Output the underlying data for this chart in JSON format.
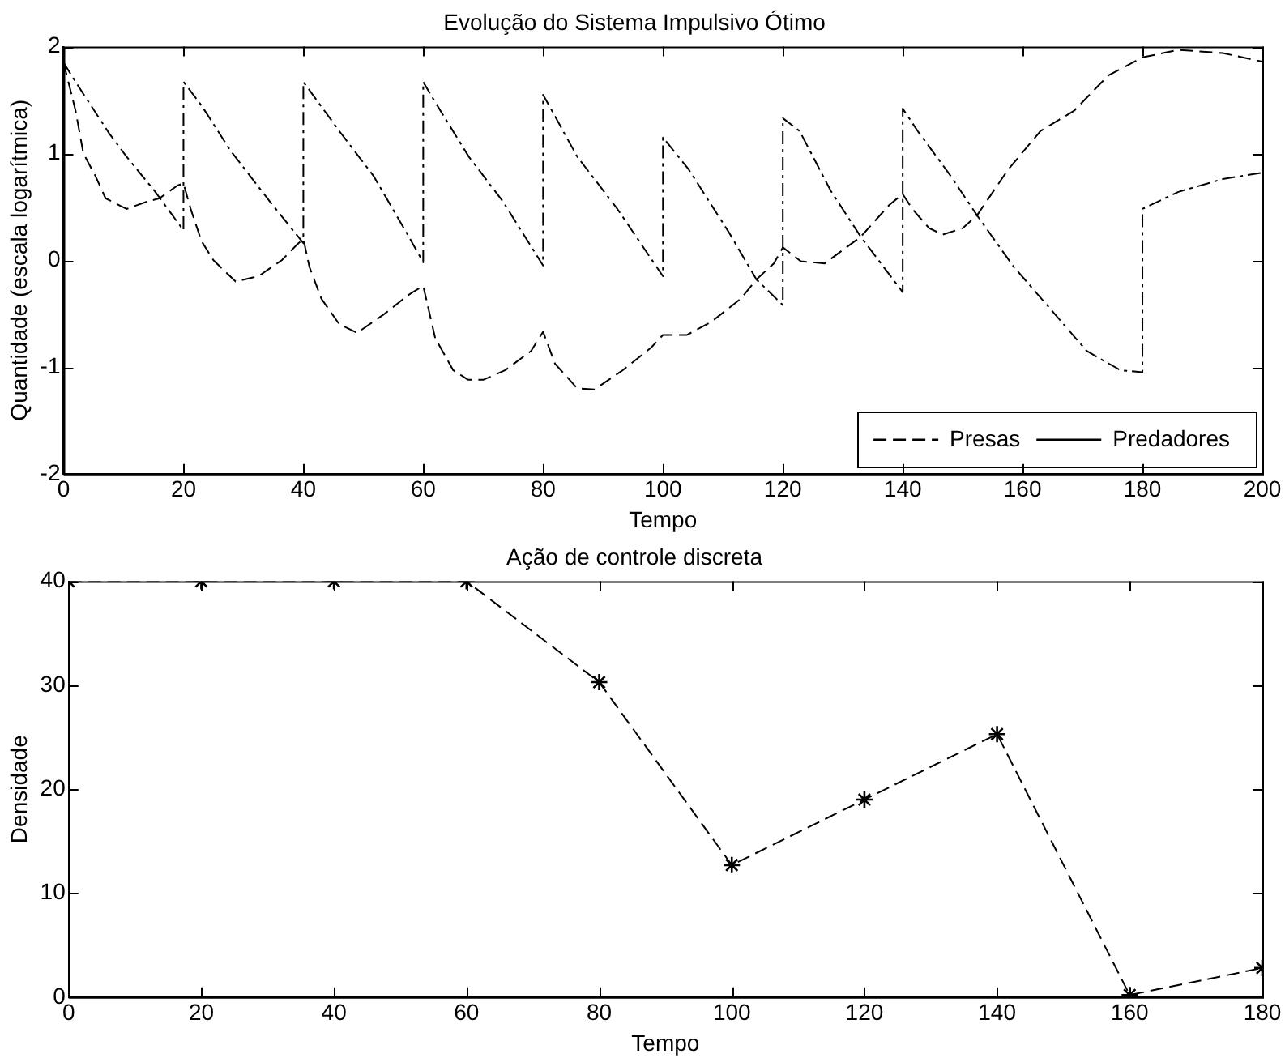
{
  "chart_data": [
    {
      "type": "line",
      "title": "Evolução do Sistema Impulsivo Ótimo",
      "xlabel": "Tempo",
      "ylabel": "Quantidade (escala logarítmica)",
      "xlim": [
        0,
        200
      ],
      "xticks": [
        0,
        20,
        40,
        60,
        80,
        100,
        120,
        140,
        160,
        180,
        200
      ],
      "ylim": [
        -2,
        2
      ],
      "yticks": [
        -2,
        -1,
        0,
        1,
        2
      ],
      "grid": false,
      "legend": "bottom right",
      "marker": "none",
      "series": [
        {
          "name": "Presas",
          "color": "#000000",
          "line_style": "dashed",
          "x": [
            0,
            2,
            3.3,
            5.3,
            7,
            10.5,
            14,
            16,
            19,
            20,
            21.2,
            23,
            25,
            28.7,
            32.5,
            36.4,
            39,
            40,
            41,
            43,
            46,
            49,
            53.6,
            57.4,
            60,
            62,
            65,
            67.5,
            70,
            73.7,
            78,
            80,
            82,
            85.7,
            88.6,
            93.3,
            98,
            100,
            104,
            108,
            113,
            115.6,
            118.5,
            120,
            123,
            127,
            133,
            137.8,
            140,
            141.6,
            144.4,
            146.7,
            150,
            152.4,
            157.6,
            163,
            168.6,
            174.3,
            180,
            186,
            193.4,
            200
          ],
          "values": [
            1.85,
            1.4,
            1.0,
            0.79,
            0.58,
            0.48,
            0.55,
            0.58,
            0.7,
            0.72,
            0.48,
            0.18,
            0,
            -0.2,
            -0.15,
            0,
            0.15,
            0.2,
            -0.06,
            -0.36,
            -0.6,
            -0.68,
            -0.5,
            -0.33,
            -0.24,
            -0.73,
            -1.03,
            -1.12,
            -1.12,
            -1.03,
            -0.85,
            -0.67,
            -0.97,
            -1.2,
            -1.21,
            -1.03,
            -0.82,
            -0.7,
            -0.7,
            -0.58,
            -0.36,
            -0.18,
            -0.03,
            0.12,
            -0.01,
            -0.03,
            0.22,
            0.52,
            0.62,
            0.48,
            0.3,
            0.24,
            0.3,
            0.42,
            0.85,
            1.21,
            1.4,
            1.73,
            1.9,
            1.97,
            1.94,
            1.86
          ]
        },
        {
          "name": "Predadores",
          "color": "#000000",
          "line_style": "dashdot",
          "x": [
            0,
            2.8,
            7.7,
            10.5,
            15.3,
            20,
            20,
            23,
            27.8,
            34.4,
            40,
            40,
            46,
            51.7,
            57.4,
            60,
            60,
            62,
            67.6,
            73.3,
            80,
            80,
            85.7,
            92.4,
            100,
            100,
            104.3,
            110.9,
            115.6,
            120,
            120,
            122.8,
            128,
            133,
            140,
            140,
            142.5,
            148,
            152.4,
            158.5,
            165,
            170.7,
            176.3,
            180,
            180,
            186,
            193.4,
            200
          ],
          "values": [
            1.85,
            1.6,
            1.18,
            0.97,
            0.64,
            0.28,
            1.67,
            1.45,
            1.03,
            0.55,
            0.16,
            1.67,
            1.21,
            0.79,
            0.24,
            -0.02,
            1.67,
            1.48,
            0.97,
            0.55,
            -0.05,
            1.55,
            0.97,
            0.48,
            -0.15,
            1.15,
            0.85,
            0.27,
            -0.18,
            -0.42,
            1.33,
            1.21,
            0.65,
            0.22,
            -0.3,
            1.42,
            1.21,
            0.79,
            0.42,
            -0.06,
            -0.48,
            -0.85,
            -1.03,
            -1.05,
            0.48,
            0.64,
            0.76,
            0.82
          ]
        }
      ]
    },
    {
      "type": "line",
      "title": "Ação de controle discreta",
      "xlabel": "Tempo",
      "ylabel": "Densidade",
      "xlim": [
        0,
        180
      ],
      "xticks": [
        0,
        20,
        40,
        60,
        80,
        100,
        120,
        140,
        160,
        180
      ],
      "ylim": [
        0,
        40
      ],
      "yticks": [
        0,
        10,
        20,
        30,
        40
      ],
      "grid": false,
      "legend": false,
      "marker": "cross",
      "line_style": "dashed",
      "x": [
        0,
        20,
        40,
        60,
        80,
        100,
        120,
        140,
        160,
        180
      ],
      "series": [
        {
          "color": "#000000",
          "values": [
            40,
            40,
            40,
            40,
            30.3,
            12.7,
            19,
            25.3,
            0.2,
            2.8
          ]
        }
      ]
    }
  ]
}
